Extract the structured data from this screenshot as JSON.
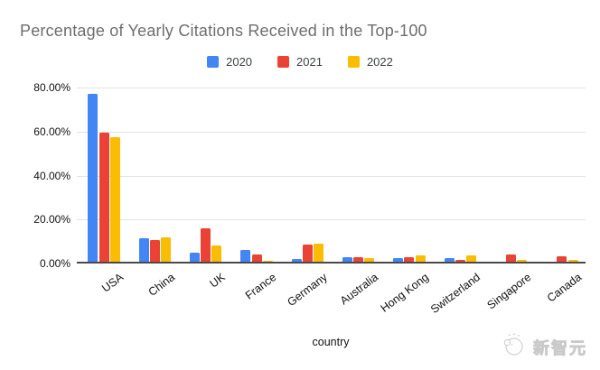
{
  "watermark": {
    "text": "新智元"
  },
  "chart_data": {
    "type": "bar",
    "title": "Percentage of Yearly Citations Received in the Top-100",
    "xlabel": "country",
    "ylabel": "",
    "ylim": [
      0,
      80
    ],
    "y_ticks": [
      "80.00%",
      "60.00%",
      "40.00%",
      "20.00%",
      "0.00%"
    ],
    "grid": true,
    "legend_position": "top-center",
    "categories": [
      "USA",
      "China",
      "UK",
      "France",
      "Germany",
      "Australia",
      "Hong Kong",
      "Switzerland",
      "Singapore",
      "Canada"
    ],
    "series": [
      {
        "name": "2020",
        "color": "#4285F4",
        "values": [
          76.3,
          10.7,
          4.0,
          5.2,
          1.4,
          2.0,
          1.5,
          1.6,
          0,
          0
        ]
      },
      {
        "name": "2021",
        "color": "#EA4335",
        "values": [
          58.7,
          9.8,
          15.3,
          3.2,
          7.9,
          2.0,
          1.9,
          0.8,
          3.2,
          2.5
        ]
      },
      {
        "name": "2022",
        "color": "#FBBC04",
        "values": [
          56.7,
          11.0,
          7.2,
          0.5,
          8.3,
          1.6,
          2.9,
          3.0,
          0.8,
          1.0
        ]
      }
    ]
  }
}
